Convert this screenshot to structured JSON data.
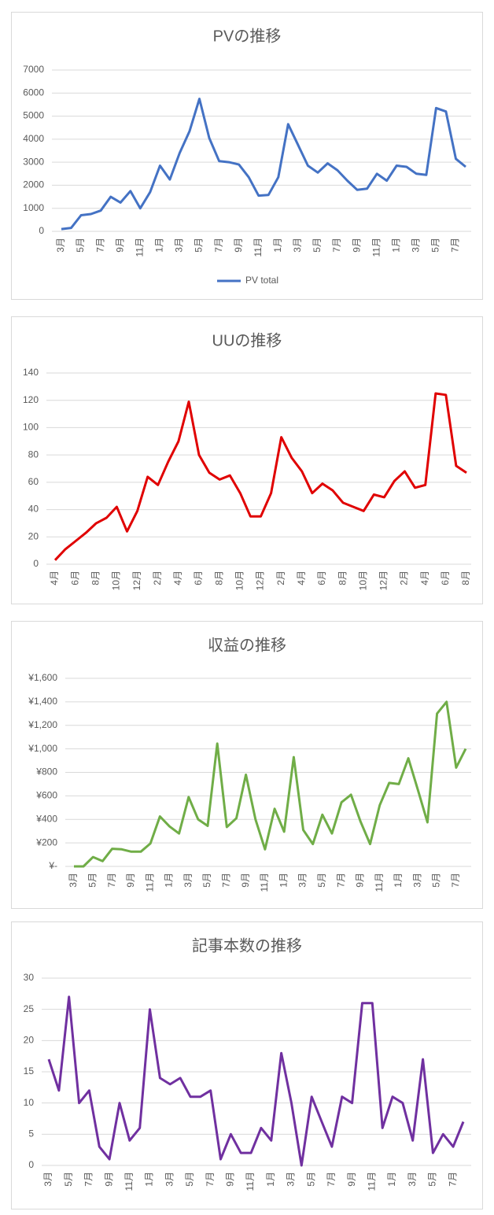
{
  "chart_data": [
    {
      "type": "line",
      "title": "PVの推移",
      "categories": [
        "3月",
        null,
        "5月",
        null,
        "7月",
        null,
        "9月",
        null,
        "11月",
        null,
        "1月",
        null,
        "3月",
        null,
        "5月",
        null,
        "7月",
        null,
        "9月",
        null,
        "11月",
        null,
        "1月",
        null,
        "3月",
        null,
        "5月",
        null,
        "7月",
        null,
        "9月",
        null,
        "11月",
        null,
        "1月",
        null,
        "3月",
        null,
        "5月",
        null,
        "7月",
        null
      ],
      "series": [
        {
          "name": "PV total",
          "color": "#4472c4",
          "values": [
            100,
            150,
            700,
            750,
            900,
            1500,
            1250,
            1750,
            1000,
            1700,
            2850,
            2250,
            3400,
            4350,
            5750,
            4050,
            3050,
            3000,
            2900,
            2350,
            1550,
            1580,
            2350,
            4650,
            3750,
            2850,
            2550,
            2950,
            2650,
            2200,
            1800,
            1850,
            2500,
            2200,
            2850,
            2800,
            2500,
            2450,
            5350,
            5200,
            3150,
            2800
          ]
        }
      ],
      "ylim": [
        0,
        7000
      ],
      "yticks": [
        0,
        1000,
        2000,
        3000,
        4000,
        5000,
        6000,
        7000
      ],
      "grid": true,
      "legend": "bottom"
    },
    {
      "type": "line",
      "title": "UUの推移",
      "categories": [
        "4月",
        null,
        "6月",
        null,
        "8月",
        null,
        "10月",
        null,
        "12月",
        null,
        "2月",
        null,
        "4月",
        null,
        "6月",
        null,
        "8月",
        null,
        "10月",
        null,
        "12月",
        null,
        "2月",
        null,
        "4月",
        null,
        "6月",
        null,
        "8月",
        null,
        "10月",
        null,
        "12月",
        null,
        "2月",
        null,
        "4月",
        null,
        "6月",
        null,
        "8月"
      ],
      "series": [
        {
          "color": "#e00000",
          "values": [
            3,
            11,
            17,
            23,
            30,
            34,
            42,
            24,
            39,
            64,
            58,
            75,
            90,
            119,
            80,
            67,
            62,
            65,
            52,
            35,
            35,
            52,
            93,
            78,
            68,
            52,
            59,
            54,
            45,
            42,
            39,
            51,
            49,
            61,
            68,
            56,
            58,
            125,
            124,
            72,
            67
          ]
        }
      ],
      "ylim": [
        0,
        140
      ],
      "yticks": [
        0,
        20,
        40,
        60,
        80,
        100,
        120,
        140
      ],
      "grid": true
    },
    {
      "type": "line",
      "title": "収益の推移",
      "categories": [
        "3月",
        null,
        "5月",
        null,
        "7月",
        null,
        "9月",
        null,
        "11月",
        null,
        "1月",
        null,
        "3月",
        null,
        "5月",
        null,
        "7月",
        null,
        "9月",
        null,
        "11月",
        null,
        "1月",
        null,
        "3月",
        null,
        "5月",
        null,
        "7月",
        null,
        "9月",
        null,
        "11月",
        null,
        "1月",
        null,
        "3月",
        null,
        "5月",
        null,
        "7月",
        null
      ],
      "series": [
        {
          "color": "#70ad47",
          "values": [
            0,
            0,
            80,
            45,
            150,
            145,
            125,
            125,
            195,
            425,
            340,
            280,
            590,
            400,
            345,
            1045,
            335,
            410,
            780,
            400,
            145,
            490,
            295,
            930,
            310,
            190,
            440,
            280,
            545,
            610,
            380,
            190,
            520,
            710,
            700,
            920,
            650,
            375,
            1300,
            1400,
            840,
            1000
          ]
        }
      ],
      "ylim": [
        0,
        1600
      ],
      "yticks": [
        {
          "value": 0,
          "label": "¥-"
        },
        {
          "value": 200,
          "label": "¥200"
        },
        {
          "value": 400,
          "label": "¥400"
        },
        {
          "value": 600,
          "label": "¥600"
        },
        {
          "value": 800,
          "label": "¥800"
        },
        {
          "value": 1000,
          "label": "¥1,000"
        },
        {
          "value": 1200,
          "label": "¥1,200"
        },
        {
          "value": 1400,
          "label": "¥1,400"
        },
        {
          "value": 1600,
          "label": "¥1,600"
        }
      ],
      "grid": true
    },
    {
      "type": "line",
      "title": "記事本数の推移",
      "categories": [
        "3月",
        null,
        "5月",
        null,
        "7月",
        null,
        "9月",
        null,
        "11月",
        null,
        "1月",
        null,
        "3月",
        null,
        "5月",
        null,
        "7月",
        null,
        "9月",
        null,
        "11月",
        null,
        "1月",
        null,
        "3月",
        null,
        "5月",
        null,
        "7月",
        null,
        "9月",
        null,
        "11月",
        null,
        "1月",
        null,
        "3月",
        null,
        "5月",
        null,
        "7月",
        null
      ],
      "series": [
        {
          "color": "#7030a0",
          "values": [
            17,
            12,
            27,
            10,
            12,
            3,
            1,
            10,
            4,
            6,
            25,
            14,
            13,
            14,
            11,
            11,
            12,
            1,
            5,
            2,
            2,
            6,
            4,
            18,
            10,
            0,
            11,
            7,
            3,
            11,
            10,
            26,
            26,
            6,
            11,
            10,
            4,
            17,
            2,
            5,
            3,
            7
          ]
        }
      ],
      "ylim": [
        0,
        30
      ],
      "yticks": [
        0,
        5,
        10,
        15,
        20,
        25,
        30
      ],
      "grid": true
    }
  ]
}
